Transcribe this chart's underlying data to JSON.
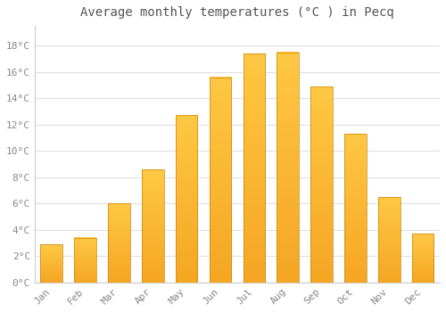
{
  "months": [
    "Jan",
    "Feb",
    "Mar",
    "Apr",
    "May",
    "Jun",
    "Jul",
    "Aug",
    "Sep",
    "Oct",
    "Nov",
    "Dec"
  ],
  "temperatures": [
    2.9,
    3.4,
    6.0,
    8.6,
    12.7,
    15.6,
    17.4,
    17.5,
    14.9,
    11.3,
    6.5,
    3.7
  ],
  "title": "Average monthly temperatures (°C ) in Pecq",
  "title_fontsize": 10,
  "title_color": "#555555",
  "ylabel_ticks": [
    "0°C",
    "2°C",
    "4°C",
    "6°C",
    "8°C",
    "10°C",
    "12°C",
    "14°C",
    "16°C",
    "18°C"
  ],
  "ytick_values": [
    0,
    2,
    4,
    6,
    8,
    10,
    12,
    14,
    16,
    18
  ],
  "ylim": [
    0,
    19.5
  ],
  "tick_label_color": "#888888",
  "grid_color": "#e0e0e0",
  "bg_color": "#ffffff",
  "bar_color_dark": "#F5A623",
  "bar_color_light": "#FFC844",
  "bar_edge_color": "#C8860A",
  "font_family": "monospace",
  "bar_width": 0.65
}
